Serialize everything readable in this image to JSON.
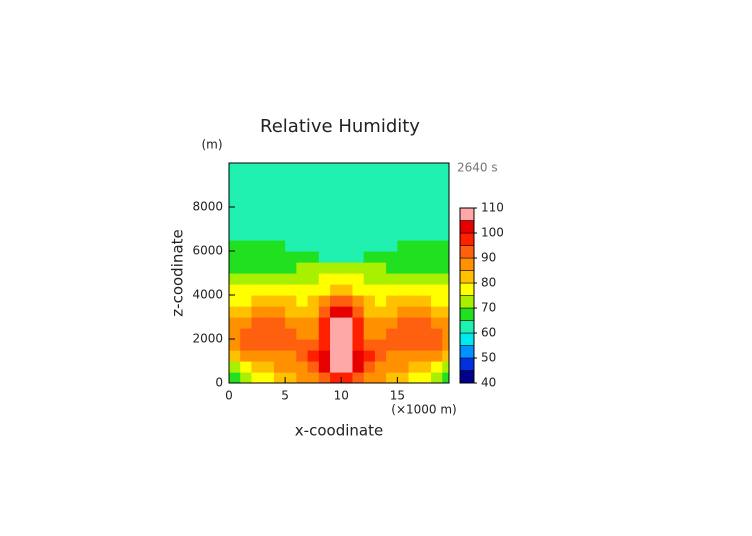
{
  "chart_data": {
    "type": "contour",
    "title": "Relative Humidity",
    "y_unit": "(m)",
    "time_label": "2640 s",
    "x_label": "x-coodinate",
    "y_label": "z-coodinate",
    "x_unit": "(×1000 m)",
    "xlim": [
      0,
      19.6
    ],
    "xticks": [
      0,
      5,
      10,
      15
    ],
    "ylim": [
      0,
      10000
    ],
    "yticks": [
      0,
      2000,
      4000,
      6000,
      8000
    ],
    "x": [
      0.5,
      1.5,
      2.5,
      3.5,
      4.5,
      5.5,
      6.5,
      7.5,
      8.5,
      9.5,
      10.5,
      11.5,
      12.5,
      13.5,
      14.5,
      15.5,
      16.5,
      17.5,
      18.5,
      19.5
    ],
    "z": [
      250,
      750,
      1250,
      1750,
      2250,
      2750,
      3250,
      3750,
      4250,
      4750,
      5250,
      5750,
      6250,
      6750,
      7250,
      7750,
      8250,
      8750,
      9250,
      9750
    ],
    "values": [
      [
        67,
        72,
        77,
        77,
        82,
        82,
        87,
        87,
        92,
        97,
        97,
        92,
        87,
        87,
        82,
        82,
        77,
        77,
        72,
        67
      ],
      [
        72,
        77,
        82,
        82,
        87,
        87,
        87,
        92,
        102,
        107,
        107,
        102,
        92,
        87,
        87,
        87,
        82,
        82,
        77,
        72
      ],
      [
        82,
        87,
        87,
        87,
        87,
        87,
        92,
        97,
        102,
        107,
        107,
        102,
        97,
        92,
        87,
        87,
        87,
        87,
        87,
        82
      ],
      [
        87,
        92,
        92,
        92,
        92,
        92,
        92,
        92,
        97,
        107,
        107,
        97,
        92,
        92,
        92,
        92,
        92,
        92,
        92,
        87
      ],
      [
        87,
        92,
        92,
        92,
        92,
        92,
        87,
        87,
        97,
        107,
        107,
        97,
        87,
        87,
        92,
        92,
        92,
        92,
        92,
        87
      ],
      [
        87,
        87,
        92,
        92,
        92,
        87,
        87,
        87,
        97,
        107,
        107,
        97,
        87,
        87,
        87,
        92,
        92,
        92,
        87,
        87
      ],
      [
        82,
        82,
        87,
        87,
        87,
        82,
        82,
        82,
        92,
        102,
        102,
        92,
        82,
        82,
        82,
        87,
        87,
        87,
        82,
        82
      ],
      [
        77,
        77,
        82,
        82,
        82,
        82,
        77,
        82,
        87,
        92,
        92,
        87,
        82,
        77,
        82,
        82,
        82,
        82,
        77,
        77
      ],
      [
        77,
        77,
        77,
        77,
        77,
        77,
        77,
        77,
        77,
        82,
        82,
        77,
        77,
        77,
        77,
        77,
        77,
        77,
        77,
        77
      ],
      [
        72,
        72,
        72,
        72,
        72,
        72,
        72,
        72,
        77,
        77,
        77,
        77,
        72,
        72,
        72,
        72,
        72,
        72,
        72,
        72
      ],
      [
        67,
        67,
        67,
        67,
        67,
        67,
        72,
        72,
        72,
        72,
        72,
        72,
        72,
        72,
        67,
        67,
        67,
        67,
        67,
        67
      ],
      [
        67,
        67,
        67,
        67,
        67,
        67,
        67,
        67,
        62,
        62,
        62,
        62,
        67,
        67,
        67,
        67,
        67,
        67,
        67,
        67
      ],
      [
        67,
        67,
        67,
        67,
        67,
        62,
        62,
        62,
        62,
        62,
        62,
        62,
        62,
        62,
        62,
        67,
        67,
        67,
        67,
        67
      ],
      [
        62,
        62,
        62,
        62,
        62,
        62,
        62,
        62,
        62,
        62,
        62,
        62,
        62,
        62,
        62,
        62,
        62,
        62,
        62,
        62
      ],
      [
        62,
        62,
        62,
        62,
        62,
        62,
        62,
        62,
        62,
        62,
        62,
        62,
        62,
        62,
        62,
        62,
        62,
        62,
        62,
        62
      ],
      [
        62,
        62,
        62,
        62,
        62,
        62,
        62,
        62,
        62,
        62,
        62,
        62,
        62,
        62,
        62,
        62,
        62,
        62,
        62,
        62
      ],
      [
        62,
        62,
        62,
        62,
        62,
        62,
        62,
        62,
        62,
        62,
        62,
        62,
        62,
        62,
        62,
        62,
        62,
        62,
        62,
        62
      ],
      [
        62,
        62,
        62,
        62,
        62,
        62,
        62,
        62,
        62,
        62,
        62,
        62,
        62,
        62,
        62,
        62,
        62,
        62,
        62,
        62
      ],
      [
        62,
        62,
        62,
        62,
        62,
        62,
        62,
        62,
        62,
        62,
        62,
        62,
        62,
        62,
        62,
        62,
        62,
        62,
        62,
        62
      ],
      [
        62,
        62,
        62,
        62,
        62,
        62,
        62,
        62,
        62,
        62,
        62,
        62,
        62,
        62,
        62,
        62,
        62,
        62,
        62,
        62
      ]
    ],
    "levels": [
      40,
      45,
      50,
      55,
      60,
      65,
      70,
      75,
      80,
      85,
      90,
      95,
      100,
      105,
      110
    ],
    "colors": [
      "#00008c",
      "#0030e0",
      "#0090ff",
      "#00e8f0",
      "#20f0b0",
      "#20e020",
      "#a8f000",
      "#ffff00",
      "#ffc000",
      "#ff9000",
      "#ff6010",
      "#ff2000",
      "#e80000",
      "#ffa8a8"
    ],
    "colorbar_ticks": [
      40,
      50,
      60,
      70,
      80,
      90,
      100,
      110
    ]
  }
}
